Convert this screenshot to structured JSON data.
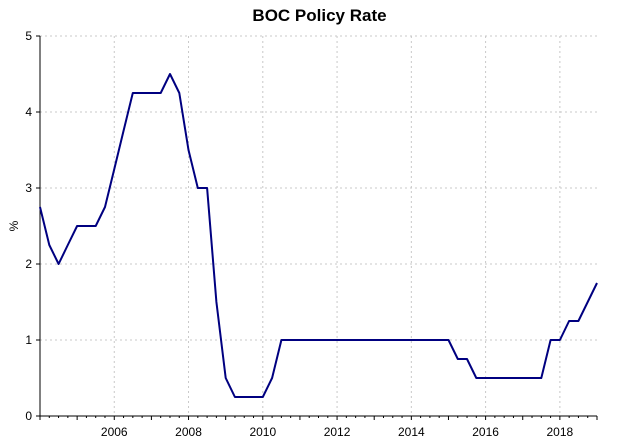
{
  "chart_data": {
    "type": "line",
    "title": "BOC Policy Rate",
    "xlabel": "",
    "ylabel": "%",
    "xlim": [
      2004.0,
      2019.0
    ],
    "ylim": [
      0,
      5
    ],
    "x_ticks": [
      2006,
      2008,
      2010,
      2012,
      2014,
      2016,
      2018
    ],
    "y_ticks": [
      0,
      1,
      2,
      3,
      4,
      5
    ],
    "grid": true,
    "legend": "none",
    "colors": {
      "line": "#000080",
      "grid": "#c8c8c8",
      "axis": "#000000"
    },
    "series": [
      {
        "x": [
          2004.0,
          2004.25,
          2004.5,
          2004.75,
          2005.0,
          2005.25,
          2005.5,
          2005.75,
          2006.0,
          2006.25,
          2006.5,
          2007.0,
          2007.25,
          2007.5,
          2007.75,
          2008.0,
          2008.25,
          2008.5,
          2008.75,
          2009.0,
          2009.25,
          2009.5,
          2009.75,
          2010.0,
          2010.25,
          2010.5,
          2010.75,
          2015.0,
          2015.25,
          2015.5,
          2015.75,
          2017.5,
          2017.75,
          2018.0,
          2018.25,
          2018.5,
          2018.75,
          2019.0
        ],
        "y": [
          2.75,
          2.25,
          2.0,
          2.25,
          2.5,
          2.5,
          2.5,
          2.75,
          3.25,
          3.75,
          4.25,
          4.25,
          4.25,
          4.5,
          4.25,
          3.5,
          3.0,
          3.0,
          1.5,
          0.5,
          0.25,
          0.25,
          0.25,
          0.25,
          0.5,
          1.0,
          1.0,
          1.0,
          0.75,
          0.75,
          0.5,
          0.5,
          1.0,
          1.0,
          1.25,
          1.25,
          1.5,
          1.75
        ]
      }
    ]
  }
}
